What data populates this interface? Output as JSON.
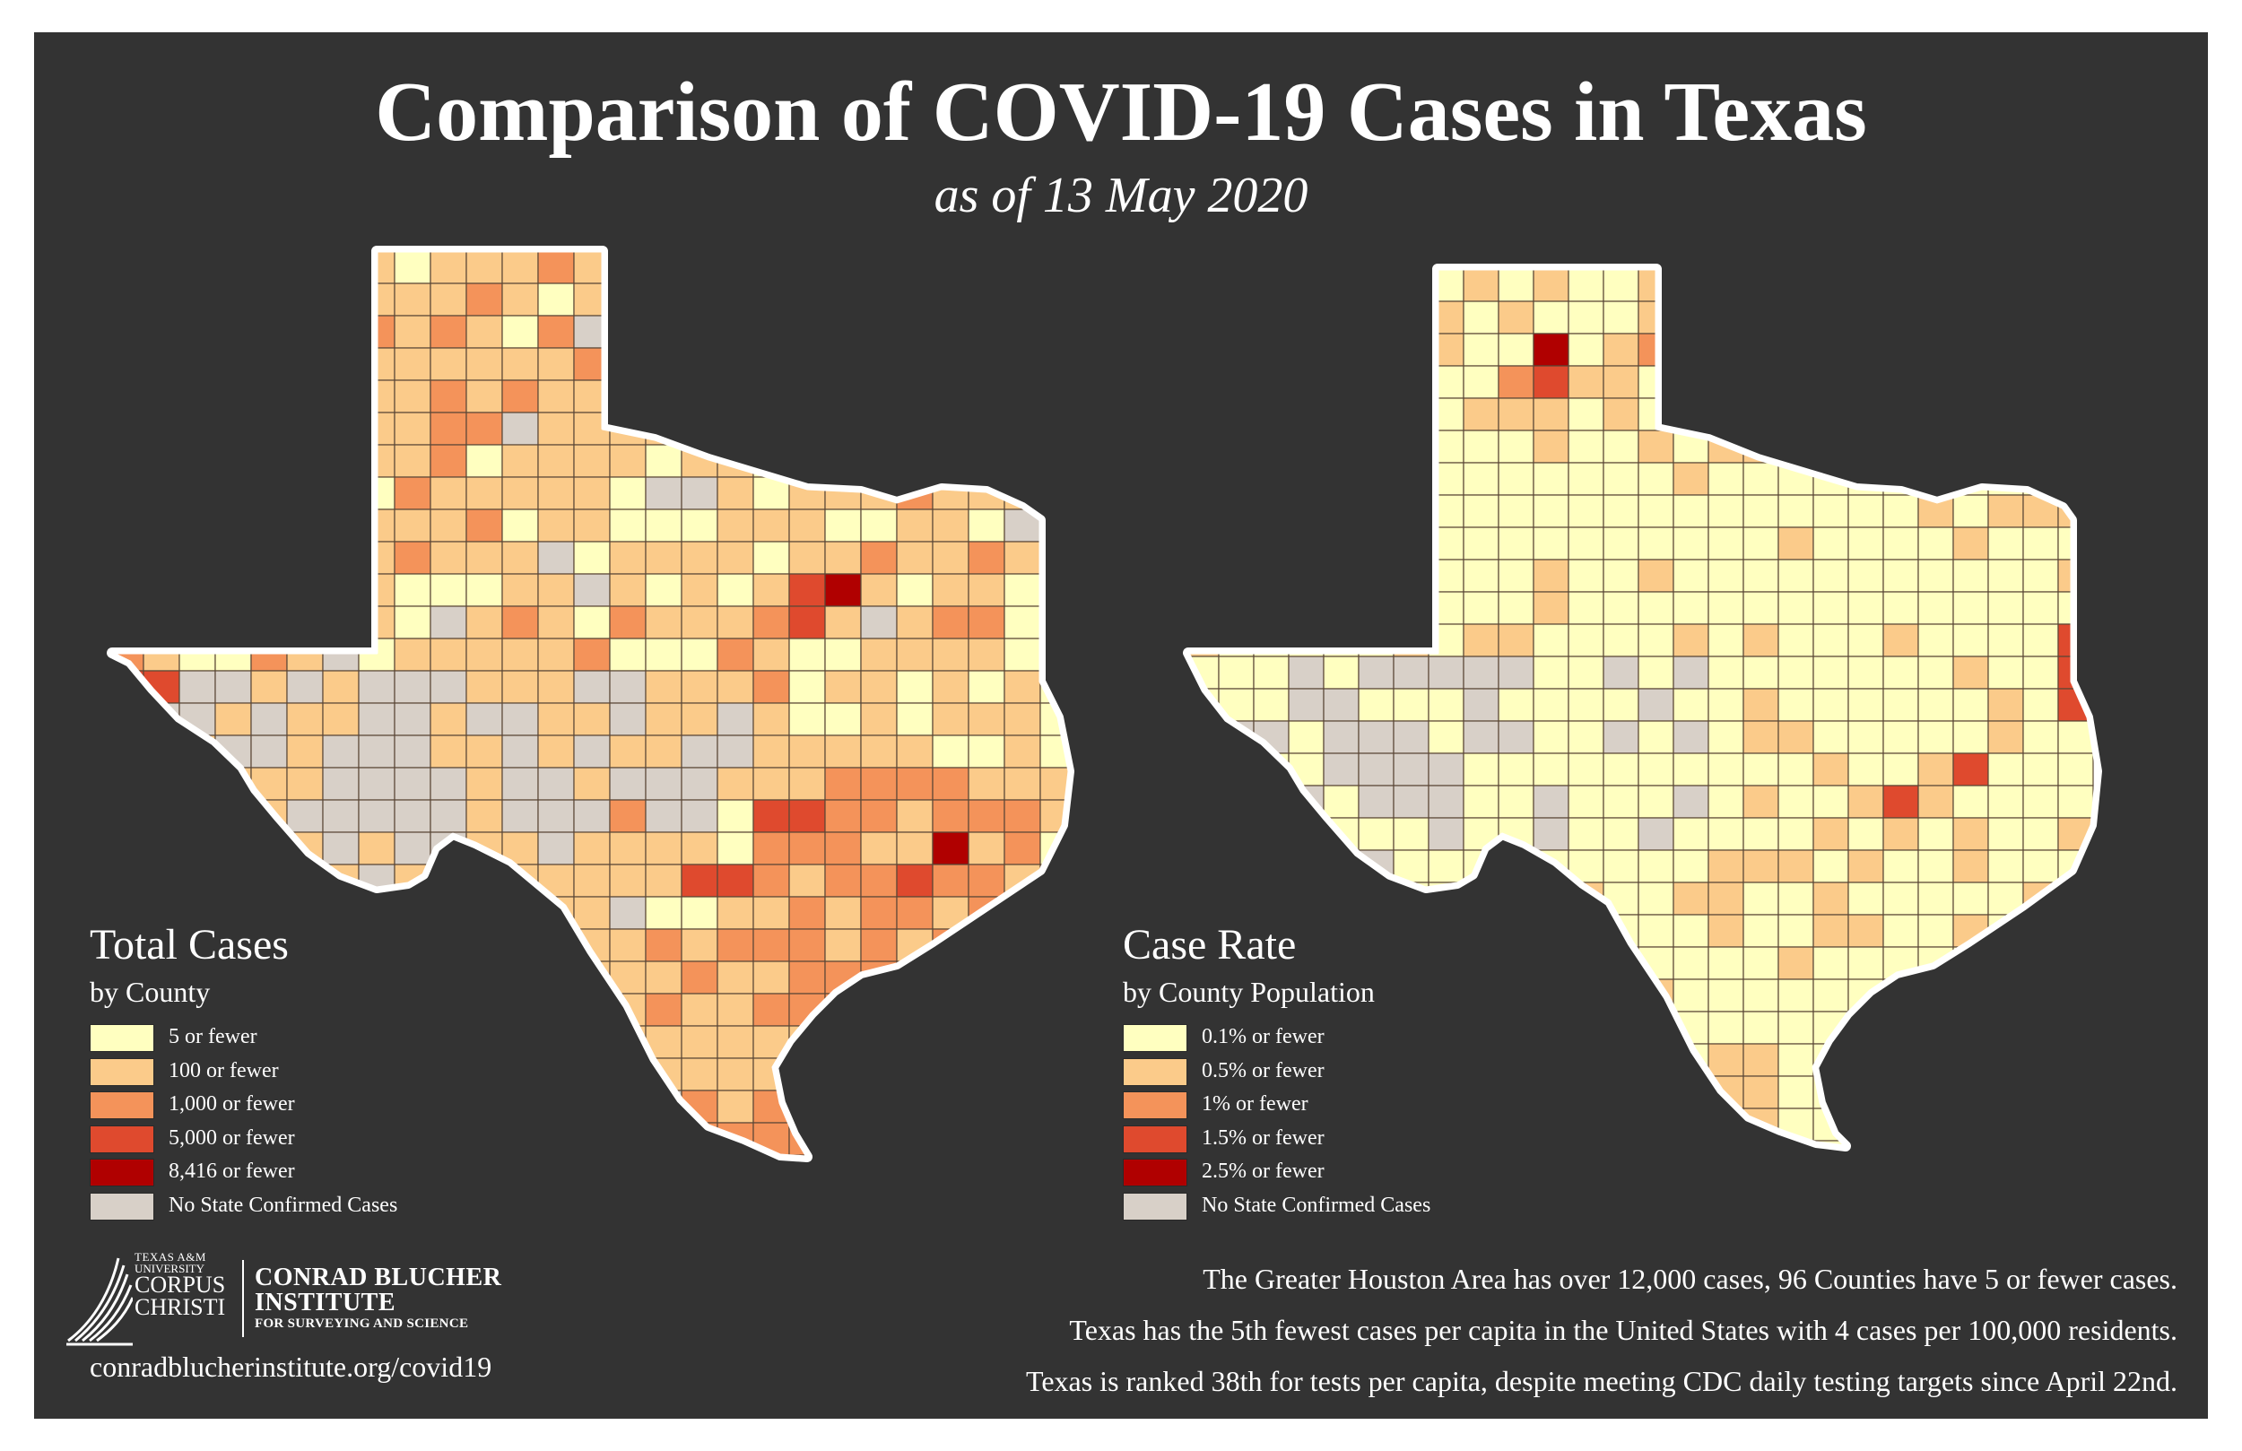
{
  "title": "Comparison of COVID-19 Cases in Texas",
  "subtitle": "as of 13 May 2020",
  "legend_total": {
    "title": "Total Cases",
    "subtitle": "by County",
    "items": [
      {
        "label": "5 or fewer",
        "color": "#ffffc0"
      },
      {
        "label": "100 or fewer",
        "color": "#fbcb8a"
      },
      {
        "label": "1,000 or fewer",
        "color": "#f4935a"
      },
      {
        "label": "5,000 or fewer",
        "color": "#df4a2e"
      },
      {
        "label": "8,416 or fewer",
        "color": "#b00000"
      },
      {
        "label": "No State Confirmed Cases",
        "color": "#d8d0c8"
      }
    ]
  },
  "legend_rate": {
    "title": "Case Rate",
    "subtitle": "by County Population",
    "items": [
      {
        "label": "0.1% or fewer",
        "color": "#ffffc0"
      },
      {
        "label": "0.5% or fewer",
        "color": "#fbcb8a"
      },
      {
        "label": "1% or fewer",
        "color": "#f4935a"
      },
      {
        "label": "1.5% or fewer",
        "color": "#df4a2e"
      },
      {
        "label": "2.5% or fewer",
        "color": "#b00000"
      },
      {
        "label": "No State Confirmed Cases",
        "color": "#d8d0c8"
      }
    ]
  },
  "logo": {
    "line1": "TEXAS A&M",
    "line2": "UNIVERSITY",
    "line3": "CORPUS",
    "line4": "CHRISTI",
    "name1": "CONRAD BLUCHER",
    "name2": "INSTITUTE",
    "name3": "FOR SURVEYING AND SCIENCE"
  },
  "url": "conradblucherinstitute.org/covid19",
  "notes": [
    "The Greater Houston Area  has over 12,000 cases, 96 Counties have 5 or fewer cases.",
    "Texas has the 5th fewest cases per capita in the United States with 4 cases per 100,000 residents.",
    "Texas is ranked 38th for tests per capita, despite meeting CDC daily testing targets since April 22nd."
  ],
  "colors": {
    "background": "#333333",
    "border": "#ffffff",
    "county_line": "#5a4636"
  }
}
